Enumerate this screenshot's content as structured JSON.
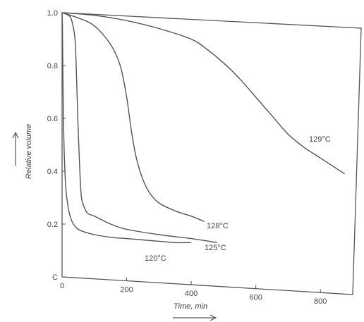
{
  "chart_data": {
    "type": "line",
    "title": "",
    "xlabel": "Time, min",
    "ylabel": "Relative volume",
    "xlim": [
      0,
      900
    ],
    "ylim": [
      0,
      1.0
    ],
    "x_ticks": [
      0,
      200,
      400,
      600,
      800
    ],
    "x_tick_labels": [
      "0",
      "200",
      "400",
      "600",
      "800"
    ],
    "y_ticks": [
      0,
      0.2,
      0.4,
      0.6,
      0.8,
      1.0
    ],
    "y_tick_labels": [
      "C",
      "0.2",
      "0.4",
      "0.6",
      "0.8",
      "1.0"
    ],
    "grid": false,
    "series": [
      {
        "name": "120°C",
        "x": [
          0,
          1,
          2,
          3,
          5,
          8,
          12,
          18,
          25,
          35,
          50,
          70,
          100,
          150,
          200,
          250,
          300,
          350,
          400
        ],
        "y": [
          1.0,
          0.95,
          0.85,
          0.7,
          0.55,
          0.42,
          0.33,
          0.27,
          0.23,
          0.2,
          0.18,
          0.17,
          0.16,
          0.15,
          0.145,
          0.14,
          0.135,
          0.13,
          0.13
        ]
      },
      {
        "name": "125°C",
        "x": [
          0,
          20,
          30,
          40,
          45,
          50,
          55,
          60,
          70,
          80,
          100,
          150,
          200,
          300,
          400,
          480
        ],
        "y": [
          1.0,
          0.99,
          0.97,
          0.9,
          0.75,
          0.55,
          0.4,
          0.3,
          0.26,
          0.24,
          0.23,
          0.2,
          0.18,
          0.16,
          0.145,
          0.13
        ]
      },
      {
        "name": "128°C",
        "x": [
          0,
          50,
          100,
          150,
          180,
          200,
          215,
          230,
          250,
          270,
          300,
          350,
          400,
          440
        ],
        "y": [
          1.0,
          0.98,
          0.95,
          0.88,
          0.8,
          0.68,
          0.55,
          0.45,
          0.37,
          0.32,
          0.28,
          0.25,
          0.23,
          0.21
        ]
      },
      {
        "name": "129°C",
        "x": [
          0,
          100,
          200,
          300,
          400,
          450,
          500,
          550,
          600,
          650,
          700,
          750,
          800,
          850,
          875
        ],
        "y": [
          1.0,
          0.99,
          0.97,
          0.94,
          0.9,
          0.86,
          0.81,
          0.75,
          0.68,
          0.61,
          0.54,
          0.49,
          0.45,
          0.41,
          0.39
        ]
      }
    ],
    "series_labels": [
      "120°C",
      "125°C",
      "128°C",
      "129°C"
    ],
    "axis_arrows": [
      "up",
      "right"
    ]
  }
}
